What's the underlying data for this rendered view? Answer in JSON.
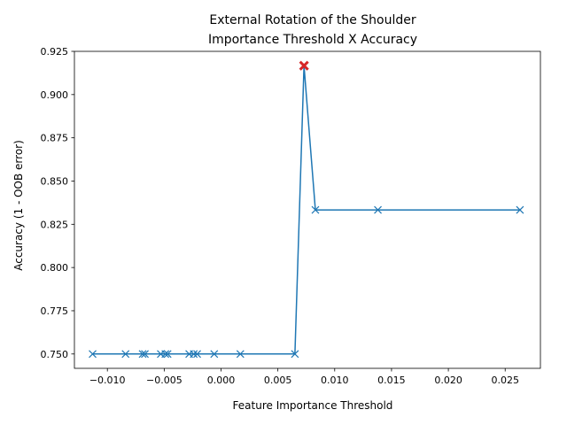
{
  "chart_data": {
    "type": "line",
    "title": "External Rotation of the Shoulder",
    "subtitle": "Importance Threshold X Accuracy",
    "xlabel": "Feature Importance Threshold",
    "ylabel": "Accuracy (1 - OOB error)",
    "xlim": [
      -0.0129,
      0.0281
    ],
    "ylim": [
      0.7417,
      0.925
    ],
    "xticks": [
      -0.01,
      -0.005,
      0.0,
      0.005,
      0.01,
      0.015,
      0.02,
      0.025
    ],
    "xtick_labels": [
      "−0.010",
      "−0.005",
      "0.000",
      "0.005",
      "0.010",
      "0.015",
      "0.020",
      "0.025"
    ],
    "yticks": [
      0.75,
      0.775,
      0.8,
      0.825,
      0.85,
      0.875,
      0.9,
      0.925
    ],
    "ytick_labels": [
      "0.750",
      "0.775",
      "0.800",
      "0.825",
      "0.850",
      "0.875",
      "0.900",
      "0.925"
    ],
    "grid": false,
    "series": [
      {
        "color": "#1f77b4",
        "marker": "x",
        "x": [
          -0.0113,
          -0.0084,
          -0.0069,
          -0.0067,
          -0.0053,
          -0.0049,
          -0.0047,
          -0.0028,
          -0.0024,
          -0.0021,
          -0.0006,
          0.0017,
          0.0065,
          0.0073,
          0.0083,
          0.0138,
          0.0263
        ],
        "y": [
          0.75,
          0.75,
          0.75,
          0.75,
          0.75,
          0.75,
          0.75,
          0.75,
          0.75,
          0.75,
          0.75,
          0.75,
          0.75,
          0.9167,
          0.8333,
          0.8333,
          0.8333
        ]
      }
    ],
    "highlight": {
      "x": 0.0073,
      "y": 0.9167,
      "color": "#d62728",
      "marker": "X"
    }
  }
}
